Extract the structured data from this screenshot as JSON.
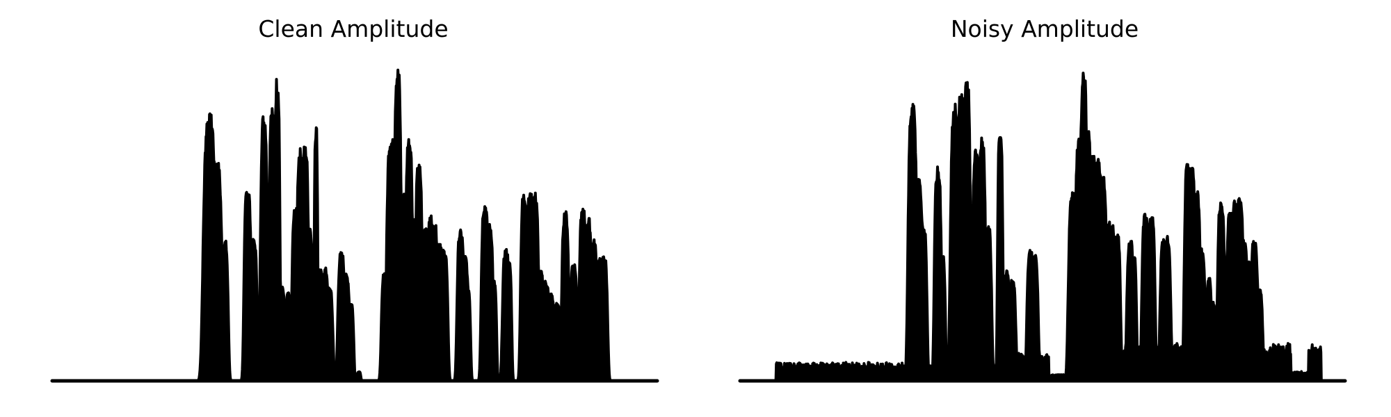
{
  "chart_data": [
    {
      "type": "area",
      "title": "Clean Amplitude",
      "xlabel": "",
      "ylabel": "",
      "axes_visible": false,
      "grid": false,
      "color": "#000000",
      "ylim": [
        0,
        1
      ],
      "peaks": [
        [
          0.26,
          0.007,
          0.85
        ],
        [
          0.272,
          0.006,
          0.7
        ],
        [
          0.285,
          0.004,
          0.45
        ],
        [
          0.323,
          0.004,
          0.62
        ],
        [
          0.333,
          0.004,
          0.45
        ],
        [
          0.35,
          0.004,
          0.85
        ],
        [
          0.363,
          0.003,
          0.88
        ],
        [
          0.372,
          0.003,
          0.97
        ],
        [
          0.38,
          0.003,
          0.3
        ],
        [
          0.39,
          0.003,
          0.28
        ],
        [
          0.402,
          0.004,
          0.55
        ],
        [
          0.41,
          0.004,
          0.74
        ],
        [
          0.418,
          0.004,
          0.75
        ],
        [
          0.425,
          0.004,
          0.5
        ],
        [
          0.428,
          0.002,
          0.16
        ],
        [
          0.436,
          0.002,
          0.82
        ],
        [
          0.442,
          0.004,
          0.36
        ],
        [
          0.451,
          0.004,
          0.36
        ],
        [
          0.458,
          0.004,
          0.3
        ],
        [
          0.478,
          0.004,
          0.41
        ],
        [
          0.486,
          0.004,
          0.34
        ],
        [
          0.494,
          0.003,
          0.25
        ],
        [
          0.507,
          0.002,
          0.03
        ],
        [
          0.55,
          0.004,
          0.35
        ],
        [
          0.56,
          0.005,
          0.78
        ],
        [
          0.571,
          0.004,
          1.0
        ],
        [
          0.58,
          0.004,
          0.6
        ],
        [
          0.59,
          0.004,
          0.78
        ],
        [
          0.598,
          0.004,
          0.52
        ],
        [
          0.606,
          0.004,
          0.69
        ],
        [
          0.617,
          0.004,
          0.5
        ],
        [
          0.626,
          0.004,
          0.53
        ],
        [
          0.632,
          0.004,
          0.5
        ],
        [
          0.64,
          0.004,
          0.45
        ],
        [
          0.648,
          0.004,
          0.42
        ],
        [
          0.675,
          0.004,
          0.48
        ],
        [
          0.682,
          0.004,
          0.4
        ],
        [
          0.687,
          0.003,
          0.3
        ],
        [
          0.715,
          0.004,
          0.57
        ],
        [
          0.723,
          0.004,
          0.5
        ],
        [
          0.73,
          0.003,
          0.32
        ],
        [
          0.75,
          0.004,
          0.42
        ],
        [
          0.755,
          0.003,
          0.38
        ],
        [
          0.78,
          0.004,
          0.6
        ],
        [
          0.79,
          0.004,
          0.6
        ],
        [
          0.798,
          0.004,
          0.6
        ],
        [
          0.807,
          0.004,
          0.35
        ],
        [
          0.816,
          0.004,
          0.32
        ],
        [
          0.825,
          0.003,
          0.28
        ],
        [
          0.835,
          0.004,
          0.25
        ],
        [
          0.848,
          0.004,
          0.54
        ],
        [
          0.855,
          0.003,
          0.32
        ],
        [
          0.862,
          0.004,
          0.38
        ],
        [
          0.868,
          0.003,
          0.26
        ],
        [
          0.877,
          0.004,
          0.55
        ],
        [
          0.886,
          0.004,
          0.52
        ],
        [
          0.895,
          0.004,
          0.45
        ],
        [
          0.905,
          0.004,
          0.39
        ],
        [
          0.912,
          0.004,
          0.4
        ]
      ]
    },
    {
      "type": "area",
      "title": "Noisy Amplitude",
      "xlabel": "",
      "ylabel": "",
      "axes_visible": false,
      "grid": false,
      "color": "#000000",
      "ylim": [
        0,
        1
      ],
      "floor_segments": [
        [
          0.06,
          0.27,
          0.06
        ],
        [
          0.27,
          0.45,
          0.05
        ],
        [
          0.45,
          0.51,
          0.09
        ],
        [
          0.51,
          0.57,
          0.02
        ],
        [
          0.57,
          0.66,
          0.11
        ],
        [
          0.66,
          0.91,
          0.12
        ],
        [
          0.91,
          0.94,
          0.03
        ],
        [
          0.94,
          0.96,
          0.12
        ]
      ],
      "peaks": [
        [
          0.285,
          0.005,
          0.88
        ],
        [
          0.295,
          0.005,
          0.65
        ],
        [
          0.303,
          0.004,
          0.5
        ],
        [
          0.327,
          0.004,
          0.68
        ],
        [
          0.335,
          0.003,
          0.4
        ],
        [
          0.355,
          0.005,
          0.88
        ],
        [
          0.365,
          0.004,
          0.93
        ],
        [
          0.375,
          0.004,
          0.96
        ],
        [
          0.39,
          0.004,
          0.75
        ],
        [
          0.4,
          0.004,
          0.78
        ],
        [
          0.41,
          0.004,
          0.5
        ],
        [
          0.43,
          0.003,
          0.8
        ],
        [
          0.44,
          0.004,
          0.35
        ],
        [
          0.45,
          0.004,
          0.32
        ],
        [
          0.48,
          0.004,
          0.42
        ],
        [
          0.487,
          0.004,
          0.4
        ],
        [
          0.55,
          0.005,
          0.6
        ],
        [
          0.56,
          0.004,
          0.78
        ],
        [
          0.568,
          0.004,
          0.98
        ],
        [
          0.575,
          0.004,
          0.8
        ],
        [
          0.584,
          0.004,
          0.72
        ],
        [
          0.592,
          0.004,
          0.72
        ],
        [
          0.6,
          0.004,
          0.66
        ],
        [
          0.608,
          0.004,
          0.52
        ],
        [
          0.615,
          0.004,
          0.5
        ],
        [
          0.623,
          0.004,
          0.47
        ],
        [
          0.645,
          0.004,
          0.45
        ],
        [
          0.651,
          0.003,
          0.4
        ],
        [
          0.67,
          0.004,
          0.54
        ],
        [
          0.68,
          0.004,
          0.54
        ],
        [
          0.7,
          0.004,
          0.45
        ],
        [
          0.706,
          0.004,
          0.46
        ],
        [
          0.74,
          0.004,
          0.7
        ],
        [
          0.747,
          0.004,
          0.68
        ],
        [
          0.755,
          0.004,
          0.61
        ],
        [
          0.763,
          0.004,
          0.42
        ],
        [
          0.775,
          0.003,
          0.33
        ],
        [
          0.782,
          0.003,
          0.25
        ],
        [
          0.795,
          0.004,
          0.58
        ],
        [
          0.802,
          0.004,
          0.4
        ],
        [
          0.81,
          0.004,
          0.54
        ],
        [
          0.818,
          0.004,
          0.58
        ],
        [
          0.826,
          0.004,
          0.59
        ],
        [
          0.833,
          0.004,
          0.45
        ],
        [
          0.842,
          0.004,
          0.38
        ],
        [
          0.85,
          0.004,
          0.45
        ],
        [
          0.858,
          0.004,
          0.3
        ]
      ]
    }
  ]
}
